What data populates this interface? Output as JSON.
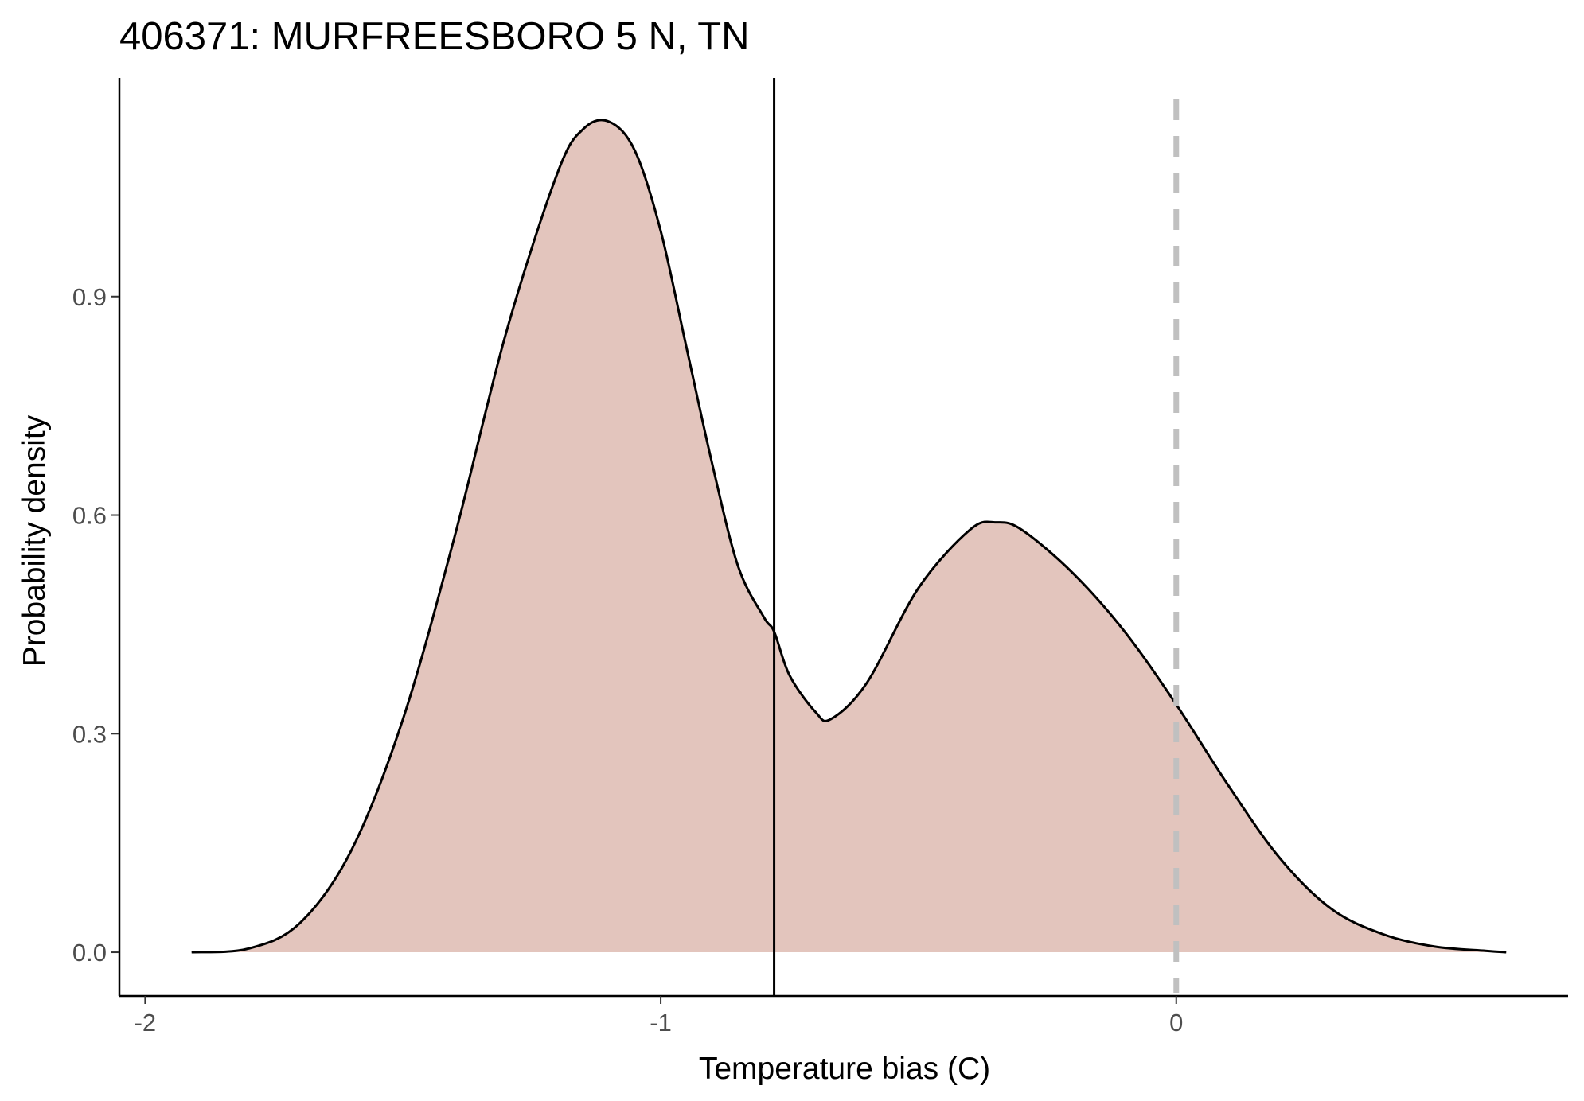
{
  "chart_data": {
    "type": "area",
    "title": "406371: MURFREESBORO 5 N, TN",
    "xlabel": "Temperature bias (C)",
    "ylabel": "Probability density",
    "xlim": [
      -2.05,
      0.76
    ],
    "ylim": [
      -0.06,
      1.2
    ],
    "x_ticks": [
      -2,
      -1,
      0
    ],
    "x_tick_labels": [
      "-2",
      "-1",
      "0"
    ],
    "y_ticks": [
      0.0,
      0.3,
      0.6,
      0.9
    ],
    "y_tick_labels": [
      "0.0",
      "0.3",
      "0.6",
      "0.9"
    ],
    "grid": false,
    "legend": "none",
    "fill_color": "#e3c5bd",
    "line_color": "#000000",
    "reference_lines": [
      {
        "x": -0.78,
        "style": "solid",
        "color": "#000000"
      },
      {
        "x": 0.0,
        "style": "dashed",
        "color": "#c0c0c0"
      }
    ],
    "x": [
      -1.91,
      -1.8,
      -1.7,
      -1.6,
      -1.5,
      -1.4,
      -1.3,
      -1.2,
      -1.15,
      -1.1,
      -1.05,
      -1.0,
      -0.95,
      -0.9,
      -0.85,
      -0.8,
      -0.78,
      -0.75,
      -0.7,
      -0.67,
      -0.6,
      -0.5,
      -0.4,
      -0.35,
      -0.3,
      -0.2,
      -0.1,
      0.0,
      0.1,
      0.2,
      0.3,
      0.4,
      0.5,
      0.6,
      0.64
    ],
    "y": [
      0.0,
      0.005,
      0.04,
      0.14,
      0.32,
      0.57,
      0.85,
      1.07,
      1.13,
      1.14,
      1.1,
      0.99,
      0.83,
      0.67,
      0.53,
      0.46,
      0.44,
      0.38,
      0.33,
      0.32,
      0.37,
      0.5,
      0.58,
      0.59,
      0.58,
      0.52,
      0.44,
      0.34,
      0.23,
      0.13,
      0.06,
      0.025,
      0.008,
      0.002,
      0.0
    ]
  }
}
